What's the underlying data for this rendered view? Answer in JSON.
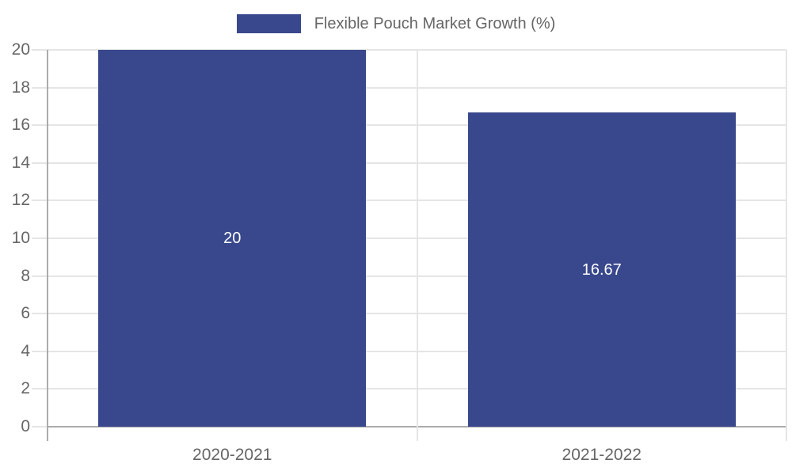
{
  "chart_data": {
    "type": "bar",
    "title": "",
    "legend_position": "top",
    "categories": [
      "2020-2021",
      "2021-2022"
    ],
    "series": [
      {
        "name": "Flexible Pouch Market Growth (%)",
        "values": [
          20,
          16.67
        ],
        "labels": [
          "20",
          "16.67"
        ]
      }
    ],
    "xlabel": "",
    "ylabel": "",
    "ylim": [
      0,
      20
    ],
    "ytick_step": 2,
    "grid": true,
    "colors": {
      "bar": "#39488C",
      "bar_label_text": "#FFFFFF",
      "axis_text": "#666666",
      "gridline": "#E5E5E5",
      "axis_line": "#ABABAB",
      "background": "#FFFFFF"
    }
  }
}
